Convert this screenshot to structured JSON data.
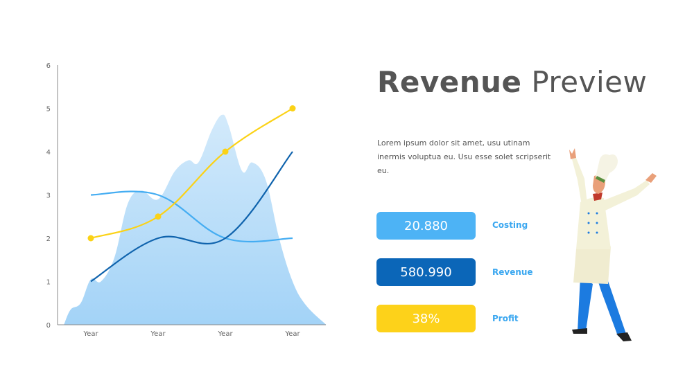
{
  "slide": {
    "title_bold": "Revenue",
    "title_light": "Preview",
    "description": "Lorem ipsum dolor sit amet, usu utinam inermis voluptua eu. Usu esse solet scripserit eu."
  },
  "stats": [
    {
      "value": "20.880",
      "label": "Costing",
      "color": "#4db3f5",
      "label_color": "#3aa7f0"
    },
    {
      "value": "580.990",
      "label": "Revenue",
      "color": "#0b66b8",
      "label_color": "#3aa7f0"
    },
    {
      "value": "38%",
      "label": "Profit",
      "color": "#fdd21a",
      "label_color": "#3aa7f0"
    }
  ],
  "colors": {
    "area_top": "#d3eafb",
    "area_bottom": "#a3d3f7",
    "light_blue": "#45adf2",
    "dark_blue": "#0f63ad",
    "yellow": "#fbd216",
    "axis": "#888888"
  },
  "chart_data": {
    "type": "line",
    "categories": [
      "Year",
      "Year",
      "Year",
      "Year"
    ],
    "ylim": [
      0,
      6
    ],
    "yticks": [
      "0",
      "1",
      "2",
      "3",
      "4",
      "5",
      "6"
    ],
    "series": [
      {
        "values": [
          2,
          2.5,
          4,
          5
        ],
        "color": "#fbd216",
        "markers": true
      },
      {
        "values": [
          1,
          2,
          2,
          4
        ],
        "color": "#0f63ad",
        "markers": false
      },
      {
        "values": [
          3,
          3,
          2,
          2
        ],
        "color": "#45adf2",
        "markers": false
      }
    ],
    "area": {
      "x": [
        -0.4,
        -0.3,
        -0.15,
        0,
        0.15,
        0.35,
        0.55,
        0.75,
        1,
        1.25,
        1.45,
        1.6,
        1.8,
        1.95,
        2.05,
        2.25,
        2.4,
        2.6,
        2.8,
        3.0,
        3.2,
        3.5
      ],
      "values": [
        0,
        0.35,
        0.5,
        1.05,
        1.0,
        1.55,
        2.8,
        3.1,
        2.9,
        3.55,
        3.8,
        3.75,
        4.5,
        4.85,
        4.6,
        3.55,
        3.75,
        3.35,
        2.0,
        1.0,
        0.45,
        0
      ]
    }
  }
}
